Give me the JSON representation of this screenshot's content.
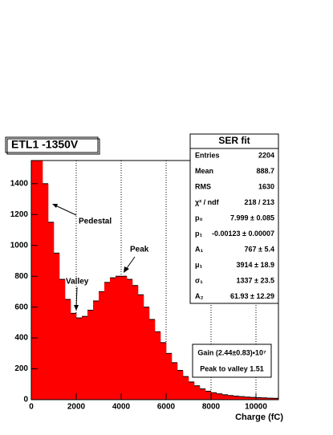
{
  "chart_data": {
    "type": "histogram",
    "title": "ETL1    -1350V",
    "x_label": "Charge (fC)",
    "color": "#ff0000",
    "grid": "x",
    "xlim": [
      0,
      11000
    ],
    "ylim": [
      0,
      1550
    ],
    "xticks": [
      0,
      2000,
      4000,
      6000,
      8000,
      10000
    ],
    "yticks": [
      0,
      200,
      400,
      600,
      800,
      1000,
      1200,
      1400
    ],
    "bins": [
      0,
      250,
      500,
      750,
      1000,
      1250,
      1500,
      1750,
      2000,
      2250,
      2500,
      2750,
      3000,
      3250,
      3500,
      3750,
      4000,
      4250,
      4500,
      4750,
      5000,
      5250,
      5500,
      5750,
      6000,
      6250,
      6500,
      6750,
      7000,
      7250,
      7500,
      7750,
      8000,
      8250,
      8500,
      8750,
      9000,
      9250,
      9500,
      9750,
      10000,
      10250,
      10500,
      10750,
      11000
    ],
    "values": [
      1550,
      1550,
      1400,
      1150,
      950,
      780,
      650,
      560,
      530,
      540,
      580,
      640,
      700,
      760,
      790,
      800,
      800,
      780,
      740,
      680,
      600,
      520,
      440,
      370,
      300,
      240,
      190,
      150,
      115,
      90,
      70,
      55,
      45,
      38,
      32,
      27,
      23,
      20,
      17,
      15,
      13,
      12,
      10,
      9
    ],
    "annotations": [
      "Pedestal",
      "Valley",
      "Peak"
    ],
    "stats": {
      "title": "SER fit",
      "rows": [
        [
          "Entries",
          "2204"
        ],
        [
          "Mean",
          "888.7"
        ],
        [
          "RMS",
          "1630"
        ],
        [
          "χ² / ndf",
          "218 / 213"
        ],
        [
          "p₀",
          "7.999 ± 0.085"
        ],
        [
          "p₁",
          "-0.00123 ± 0.00007"
        ],
        [
          "A₁",
          "767 ± 5.4"
        ],
        [
          "μ₁",
          "3914 ± 18.9"
        ],
        [
          "σ₁",
          "1337 ± 23.5"
        ],
        [
          "A₂",
          "61.93 ± 12.29"
        ]
      ]
    },
    "fit_results": [
      "Gain (2.44±0.83)•10⁷",
      "Peak to valley 1.51"
    ]
  }
}
